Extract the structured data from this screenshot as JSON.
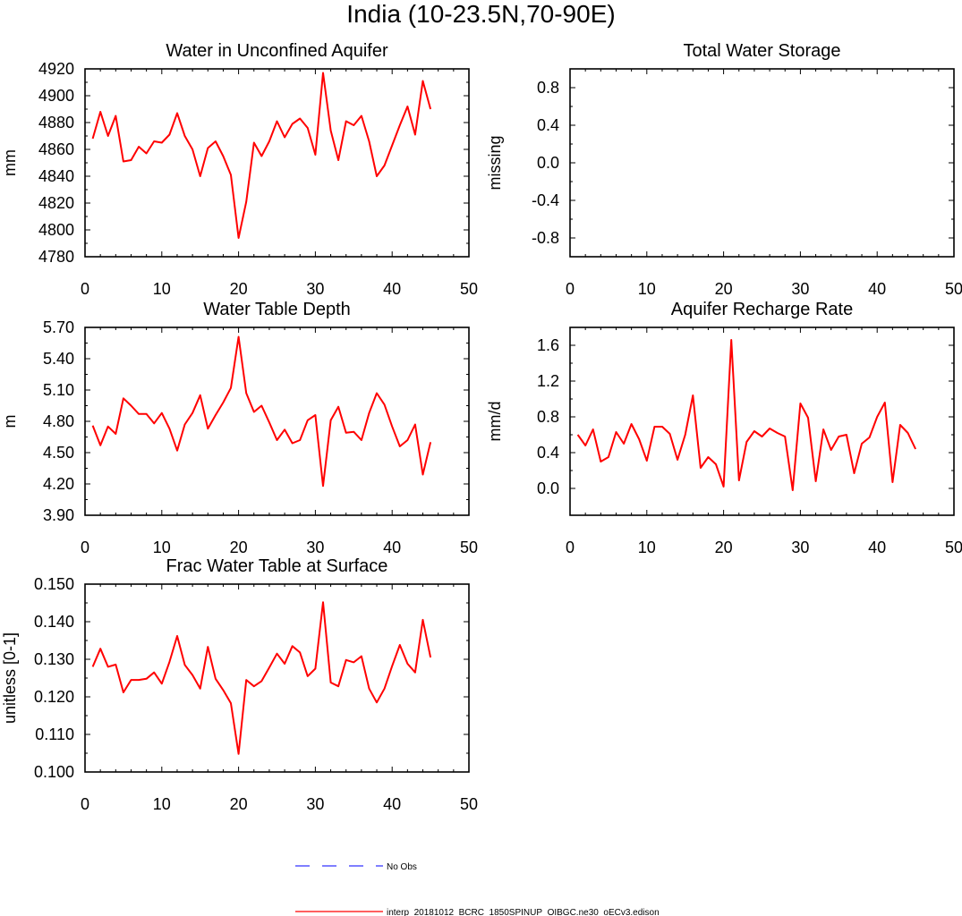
{
  "figure_title": "India (10-23.5N,70-90E)",
  "legend": {
    "obs_label": "No Obs",
    "model_label": "interp_20181012_BCRC_1850SPINUP_OIBGC.ne30_oECv3.edison",
    "colors": {
      "obs": "#3333ff",
      "model": "#ff0000"
    }
  },
  "chart_data": [
    {
      "type": "line",
      "title": "Water in Unconfined Aquifer",
      "ylabel": "mm",
      "xlim": [
        0,
        50
      ],
      "ylim": [
        4780,
        4920
      ],
      "xticks": [
        0,
        10,
        20,
        30,
        40,
        50
      ],
      "yticks": [
        4780,
        4800,
        4820,
        4840,
        4860,
        4880,
        4900,
        4920
      ],
      "ytick_labels": [
        "4780",
        "4800",
        "4820",
        "4840",
        "4860",
        "4880",
        "4900",
        "4920"
      ],
      "series": [
        {
          "color": "#ff0000",
          "x": [
            1,
            2,
            3,
            4,
            5,
            6,
            7,
            8,
            9,
            10,
            11,
            12,
            13,
            14,
            15,
            16,
            17,
            18,
            19,
            20,
            21,
            22,
            23,
            24,
            25,
            26,
            27,
            28,
            29,
            30,
            31,
            32,
            33,
            34,
            35,
            36,
            37,
            38,
            39,
            40,
            41,
            42,
            43,
            44,
            45
          ],
          "y": [
            4868,
            4888,
            4870,
            4885,
            4851,
            4852,
            4862,
            4857,
            4866,
            4865,
            4871,
            4887,
            4870,
            4860,
            4840,
            4861,
            4866,
            4855,
            4841,
            4794,
            4821,
            4865,
            4855,
            4866,
            4881,
            4869,
            4879,
            4883,
            4876,
            4856,
            4917,
            4874,
            4852,
            4881,
            4878,
            4885,
            4866,
            4840,
            4848,
            4863,
            4878,
            4892,
            4871,
            4911,
            4890
          ]
        }
      ]
    },
    {
      "type": "line",
      "title": "Total Water Storage",
      "ylabel": "missing",
      "xlim": [
        0,
        50
      ],
      "ylim": [
        -1,
        1
      ],
      "xticks": [
        0,
        10,
        20,
        30,
        40,
        50
      ],
      "yticks": [
        -0.8,
        -0.4,
        0.0,
        0.4,
        0.8
      ],
      "ytick_labels": [
        "-0.8",
        "-0.4",
        "0.0",
        "0.4",
        "0.8"
      ],
      "series": []
    },
    {
      "type": "line",
      "title": "Water Table Depth",
      "ylabel": "m",
      "xlim": [
        0,
        50
      ],
      "ylim": [
        3.9,
        5.7
      ],
      "xticks": [
        0,
        10,
        20,
        30,
        40,
        50
      ],
      "yticks": [
        3.9,
        4.2,
        4.5,
        4.8,
        5.1,
        5.4,
        5.7
      ],
      "ytick_labels": [
        "3.90",
        "4.20",
        "4.50",
        "4.80",
        "5.10",
        "5.40",
        "5.70"
      ],
      "series": [
        {
          "color": "#ff0000",
          "x": [
            1,
            2,
            3,
            4,
            5,
            6,
            7,
            8,
            9,
            10,
            11,
            12,
            13,
            14,
            15,
            16,
            17,
            18,
            19,
            20,
            21,
            22,
            23,
            24,
            25,
            26,
            27,
            28,
            29,
            30,
            31,
            32,
            33,
            34,
            35,
            36,
            37,
            38,
            39,
            40,
            41,
            42,
            43,
            44,
            45
          ],
          "y": [
            4.76,
            4.57,
            4.75,
            4.68,
            5.02,
            4.95,
            4.87,
            4.87,
            4.78,
            4.88,
            4.73,
            4.52,
            4.77,
            4.88,
            5.05,
            4.73,
            4.86,
            4.98,
            5.12,
            5.61,
            5.07,
            4.89,
            4.95,
            4.79,
            4.62,
            4.72,
            4.59,
            4.62,
            4.81,
            4.86,
            4.18,
            4.81,
            4.94,
            4.69,
            4.7,
            4.62,
            4.88,
            5.07,
            4.96,
            4.75,
            4.56,
            4.62,
            4.77,
            4.29,
            4.6
          ]
        }
      ]
    },
    {
      "type": "line",
      "title": "Aquifer Recharge Rate",
      "ylabel": "mm/d",
      "xlim": [
        0,
        50
      ],
      "ylim": [
        -0.3,
        1.8
      ],
      "xticks": [
        0,
        10,
        20,
        30,
        40,
        50
      ],
      "yticks": [
        0.0,
        0.4,
        0.8,
        1.2,
        1.6
      ],
      "ytick_labels": [
        "0.0",
        "0.4",
        "0.8",
        "1.2",
        "1.6"
      ],
      "series": [
        {
          "color": "#ff0000",
          "x": [
            1,
            2,
            3,
            4,
            5,
            6,
            7,
            8,
            9,
            10,
            11,
            12,
            13,
            14,
            15,
            16,
            17,
            18,
            19,
            20,
            21,
            22,
            23,
            24,
            25,
            26,
            27,
            28,
            29,
            30,
            31,
            32,
            33,
            34,
            35,
            36,
            37,
            38,
            39,
            40,
            41,
            42,
            43,
            44,
            45
          ],
          "y": [
            0.6,
            0.48,
            0.66,
            0.3,
            0.35,
            0.63,
            0.5,
            0.72,
            0.55,
            0.31,
            0.69,
            0.69,
            0.61,
            0.32,
            0.6,
            1.04,
            0.23,
            0.35,
            0.27,
            0.02,
            1.66,
            0.09,
            0.52,
            0.64,
            0.58,
            0.67,
            0.62,
            0.58,
            -0.02,
            0.95,
            0.79,
            0.08,
            0.66,
            0.43,
            0.58,
            0.6,
            0.17,
            0.5,
            0.57,
            0.8,
            0.96,
            0.07,
            0.71,
            0.62,
            0.44
          ]
        }
      ]
    },
    {
      "type": "line",
      "title": "Frac Water Table at Surface",
      "ylabel": "unitless [0-1]",
      "xlim": [
        0,
        50
      ],
      "ylim": [
        0.1,
        0.15
      ],
      "xticks": [
        0,
        10,
        20,
        30,
        40,
        50
      ],
      "yticks": [
        0.1,
        0.11,
        0.12,
        0.13,
        0.14,
        0.15
      ],
      "ytick_labels": [
        "0.100",
        "0.110",
        "0.120",
        "0.130",
        "0.140",
        "0.150"
      ],
      "series": [
        {
          "color": "#ff0000",
          "x": [
            1,
            2,
            3,
            4,
            5,
            6,
            7,
            8,
            9,
            10,
            11,
            12,
            13,
            14,
            15,
            16,
            17,
            18,
            19,
            20,
            21,
            22,
            23,
            24,
            25,
            26,
            27,
            28,
            29,
            30,
            31,
            32,
            33,
            34,
            35,
            36,
            37,
            38,
            39,
            40,
            41,
            42,
            43,
            44,
            45
          ],
          "y": [
            0.128,
            0.1328,
            0.128,
            0.1286,
            0.1212,
            0.1245,
            0.1245,
            0.1248,
            0.1265,
            0.1235,
            0.1293,
            0.1362,
            0.1285,
            0.1258,
            0.1222,
            0.1333,
            0.1248,
            0.1218,
            0.1183,
            0.1048,
            0.1245,
            0.1228,
            0.1242,
            0.1278,
            0.1315,
            0.1288,
            0.1335,
            0.1318,
            0.1255,
            0.1275,
            0.1452,
            0.1238,
            0.1228,
            0.1298,
            0.1292,
            0.1308,
            0.1222,
            0.1185,
            0.1222,
            0.1282,
            0.1338,
            0.1288,
            0.1265,
            0.1405,
            0.1305
          ]
        }
      ]
    }
  ]
}
